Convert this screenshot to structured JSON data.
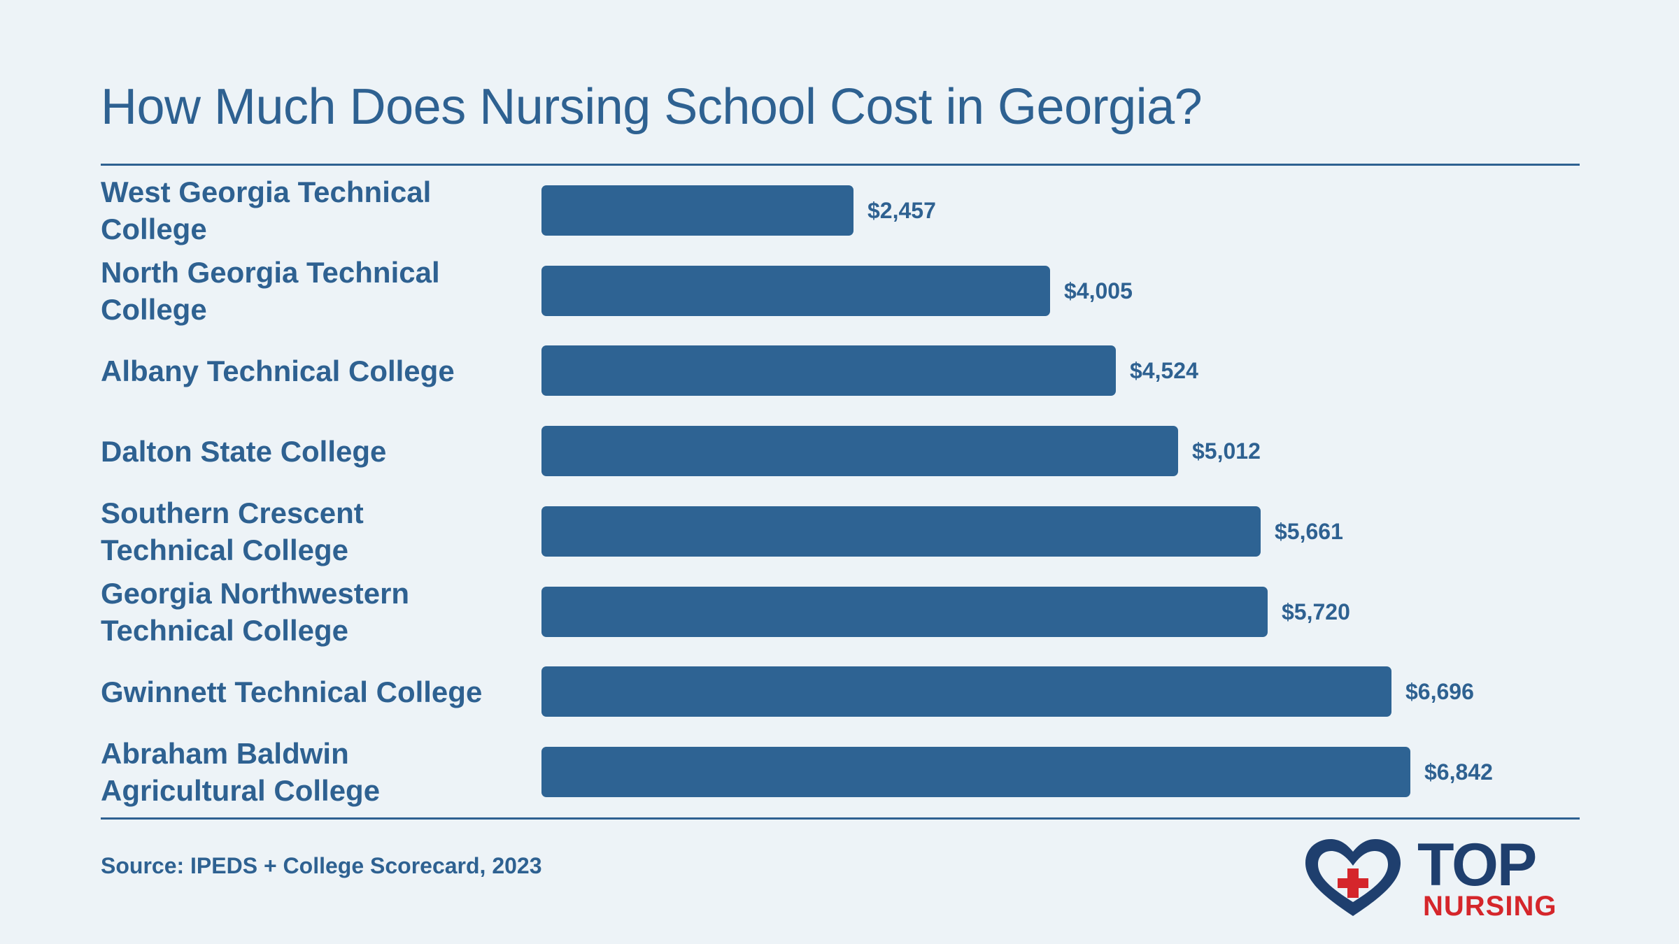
{
  "title": "How Much Does Nursing School Cost in Georgia?",
  "source": "Source: IPEDS + College Scorecard, 2023",
  "logo": {
    "top": "TOP",
    "nursing": "NURSING"
  },
  "colors": {
    "background": "#edf3f7",
    "bar": "#2e6393",
    "text": "#2e6191",
    "logo_navy": "#1f3f6e",
    "logo_red": "#d5262b"
  },
  "chart_data": {
    "type": "bar",
    "orientation": "horizontal",
    "title": "How Much Does Nursing School Cost in Georgia?",
    "xlabel": "",
    "ylabel": "",
    "categories": [
      "West Georgia Technical College",
      "North Georgia Technical College",
      "Albany Technical College",
      "Dalton State College",
      "Southern Crescent Technical College",
      "Georgia Northwestern Technical College",
      "Gwinnett Technical College",
      "Abraham Baldwin Agricultural College"
    ],
    "values": [
      2457,
      4005,
      4524,
      5012,
      5661,
      5720,
      6696,
      6842
    ],
    "value_labels": [
      "$2,457",
      "$4,005",
      "$4,524",
      "$5,012",
      "$5,661",
      "$5,720",
      "$6,696",
      "$6,842"
    ],
    "xlim": [
      0,
      6842
    ],
    "grid": false,
    "legend": "none"
  }
}
